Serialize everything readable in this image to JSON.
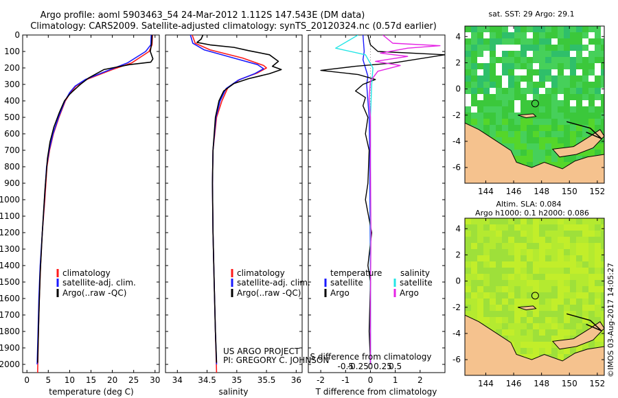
{
  "title": {
    "line1": "Argo profile: aoml 5903463_54 24-Mar-2012 1.112S 147.543E (DM data)",
    "line2": "Climatology: CARS2009. Satellite-adjusted climatology: synTS_20120324.nc (0.57d earlier)"
  },
  "colors": {
    "climatology": "#ff1a1a",
    "satellite": "#1a1aff",
    "argo": "#000000",
    "cyan": "#22e5e5",
    "magenta": "#e522e5",
    "land": "#f5c28e",
    "sst_green": "#3bd13b",
    "sla_green": "#a6e62c"
  },
  "chart_data": [
    {
      "type": "line",
      "id": "temperature",
      "xlabel": "temperature (deg C)",
      "xlim": [
        -1,
        31
      ],
      "xticks": [
        0,
        5,
        10,
        15,
        20,
        25,
        30
      ],
      "xtick_labels": [
        "0",
        "5",
        "10",
        "15",
        "20",
        "25",
        "30"
      ],
      "ylim": [
        0,
        2050
      ],
      "yticks": [
        0,
        100,
        200,
        300,
        400,
        500,
        600,
        700,
        800,
        900,
        1000,
        1100,
        1200,
        1300,
        1400,
        1500,
        1600,
        1700,
        1800,
        1900,
        2000
      ],
      "ytick_labels": [
        "0",
        "100",
        "200",
        "300",
        "400",
        "500",
        "600",
        "700",
        "800",
        "900",
        "1000",
        "1100",
        "1200",
        "1300",
        "1400",
        "1500",
        "1600",
        "1700",
        "1800",
        "1900",
        "2000"
      ],
      "legend": [
        "climatology",
        "satellite-adj. clim.",
        "Argo(..raw -QC)"
      ],
      "series": [
        {
          "name": "climatology",
          "color": "#ff1a1a",
          "points": [
            [
              29.4,
              0
            ],
            [
              29.3,
              60
            ],
            [
              28.6,
              100
            ],
            [
              24.5,
              170
            ],
            [
              20,
              210
            ],
            [
              14,
              270
            ],
            [
              11.5,
              310
            ],
            [
              10.2,
              350
            ],
            [
              9,
              400
            ],
            [
              7.5,
              500
            ],
            [
              6.2,
              600
            ],
            [
              5.3,
              700
            ],
            [
              4.7,
              800
            ],
            [
              4.2,
              1000
            ],
            [
              3.6,
              1200
            ],
            [
              3.2,
              1400
            ],
            [
              2.9,
              1600
            ],
            [
              2.7,
              1800
            ],
            [
              2.5,
              2050
            ]
          ]
        },
        {
          "name": "satellite-adj. clim.",
          "color": "#1a1aff",
          "points": [
            [
              29.1,
              0
            ],
            [
              29,
              60
            ],
            [
              27.8,
              100
            ],
            [
              23.5,
              170
            ],
            [
              19,
              215
            ],
            [
              13.7,
              270
            ],
            [
              11.3,
              310
            ],
            [
              10,
              350
            ],
            [
              8.9,
              400
            ],
            [
              7.4,
              500
            ],
            [
              6.1,
              600
            ],
            [
              5.2,
              700
            ],
            [
              4.6,
              800
            ],
            [
              4.1,
              1000
            ],
            [
              3.6,
              1200
            ],
            [
              3.1,
              1400
            ],
            [
              2.8,
              1600
            ],
            [
              2.6,
              1800
            ],
            [
              2.4,
              2000
            ]
          ]
        },
        {
          "name": "Argo(..raw -QC)",
          "color": "#000000",
          "points": [
            [
              29.3,
              0
            ],
            [
              29.2,
              50
            ],
            [
              28.9,
              100
            ],
            [
              29.5,
              145
            ],
            [
              29,
              165
            ],
            [
              24,
              180
            ],
            [
              18,
              210
            ],
            [
              14.5,
              260
            ],
            [
              12.5,
              300
            ],
            [
              10.8,
              340
            ],
            [
              10,
              360
            ],
            [
              8.8,
              400
            ],
            [
              7.6,
              470
            ],
            [
              6.3,
              560
            ],
            [
              5.4,
              650
            ],
            [
              4.8,
              750
            ],
            [
              4.2,
              950
            ],
            [
              3.6,
              1200
            ],
            [
              3.1,
              1450
            ],
            [
              2.8,
              1700
            ],
            [
              2.5,
              1990
            ]
          ]
        }
      ]
    },
    {
      "type": "line",
      "id": "salinity",
      "xlabel": "salinity",
      "xlim": [
        33.8,
        36.1
      ],
      "xticks": [
        34,
        34.5,
        35,
        35.5,
        36
      ],
      "xtick_labels": [
        "34",
        "34.5",
        "35",
        "35.5",
        "36"
      ],
      "ylim": [
        0,
        2050
      ],
      "legend": [
        "climatology",
        "satellite-adj. clim.",
        "Argo(..raw -QC)"
      ],
      "annotation": [
        "US ARGO PROJECT",
        "PI: GREGORY C. JOHNSON"
      ],
      "series": [
        {
          "name": "climatology",
          "color": "#ff1a1a",
          "points": [
            [
              34.25,
              0
            ],
            [
              34.3,
              50
            ],
            [
              34.55,
              90
            ],
            [
              35.1,
              140
            ],
            [
              35.45,
              185
            ],
            [
              35.5,
              200
            ],
            [
              35.35,
              230
            ],
            [
              35.05,
              270
            ],
            [
              34.85,
              320
            ],
            [
              34.75,
              400
            ],
            [
              34.66,
              500
            ],
            [
              34.6,
              700
            ],
            [
              34.59,
              900
            ],
            [
              34.6,
              1200
            ],
            [
              34.62,
              1500
            ],
            [
              34.64,
              1800
            ],
            [
              34.66,
              2050
            ]
          ]
        },
        {
          "name": "satellite-adj. clim.",
          "color": "#1a1aff",
          "points": [
            [
              34.22,
              0
            ],
            [
              34.26,
              50
            ],
            [
              34.45,
              90
            ],
            [
              34.95,
              140
            ],
            [
              35.35,
              180
            ],
            [
              35.45,
              205
            ],
            [
              35.3,
              235
            ],
            [
              35.02,
              275
            ],
            [
              34.82,
              325
            ],
            [
              34.72,
              400
            ],
            [
              34.65,
              500
            ],
            [
              34.6,
              700
            ],
            [
              34.59,
              900
            ],
            [
              34.6,
              1200
            ],
            [
              34.62,
              1500
            ],
            [
              34.64,
              1800
            ],
            [
              34.66,
              2000
            ]
          ]
        },
        {
          "name": "Argo(..raw -QC)",
          "color": "#000000",
          "points": [
            [
              34.43,
              0
            ],
            [
              34.4,
              25
            ],
            [
              34.33,
              45
            ],
            [
              34.55,
              60
            ],
            [
              34.95,
              75
            ],
            [
              35.2,
              95
            ],
            [
              35.55,
              120
            ],
            [
              35.7,
              160
            ],
            [
              35.6,
              190
            ],
            [
              35.75,
              210
            ],
            [
              35.55,
              235
            ],
            [
              35.2,
              265
            ],
            [
              34.95,
              295
            ],
            [
              34.78,
              340
            ],
            [
              34.7,
              400
            ],
            [
              34.64,
              500
            ],
            [
              34.6,
              700
            ],
            [
              34.59,
              900
            ],
            [
              34.6,
              1200
            ],
            [
              34.62,
              1500
            ],
            [
              34.64,
              1800
            ],
            [
              34.66,
              1990
            ]
          ]
        }
      ]
    },
    {
      "type": "line",
      "id": "difference",
      "xlabel": "T difference from climatology",
      "xlim": [
        -2.5,
        3
      ],
      "xticks": [
        -2,
        -1,
        0,
        1,
        2
      ],
      "xtick_labels": [
        "-2",
        "-1",
        "0",
        "1",
        "2"
      ],
      "top_axis_label": "S difference from climatology",
      "top_ticks": [
        -0.5,
        -0.25,
        0,
        0.25,
        0.5
      ],
      "top_tick_labels": [
        "-0.5",
        "-0.25",
        "0",
        "0.25",
        "0.5"
      ],
      "ylim": [
        0,
        2050
      ],
      "legend": {
        "temperature_header": "temperature",
        "salinity_header": "salinity",
        "satellite": "satellite",
        "argo": "Argo"
      },
      "series": [
        {
          "name": "temperature satellite",
          "color": "#1a1aff",
          "points": [
            [
              -0.3,
              0
            ],
            [
              -0.25,
              100
            ],
            [
              -0.3,
              150
            ],
            [
              -0.2,
              200
            ],
            [
              -0.1,
              250
            ],
            [
              -0.15,
              300
            ],
            [
              -0.1,
              400
            ],
            [
              -0.05,
              500
            ],
            [
              -0.03,
              700
            ],
            [
              -0.02,
              1000
            ],
            [
              0,
              1500
            ],
            [
              0,
              2000
            ]
          ]
        },
        {
          "name": "temperature Argo",
          "color": "#000000",
          "points": [
            [
              -0.1,
              0
            ],
            [
              0,
              60
            ],
            [
              0.3,
              100
            ],
            [
              3,
              120
            ],
            [
              0.9,
              170
            ],
            [
              -0.6,
              190
            ],
            [
              -2,
              215
            ],
            [
              -0.5,
              240
            ],
            [
              0.2,
              270
            ],
            [
              -0.3,
              300
            ],
            [
              -0.6,
              340
            ],
            [
              -0.2,
              380
            ],
            [
              -0.3,
              430
            ],
            [
              -0.1,
              500
            ],
            [
              -0.2,
              600
            ],
            [
              -0.05,
              700
            ],
            [
              -0.1,
              900
            ],
            [
              -0.2,
              1000
            ],
            [
              0.05,
              1200
            ],
            [
              -0.1,
              1400
            ],
            [
              0,
              1500
            ],
            [
              -0.05,
              1800
            ],
            [
              0,
              1990
            ]
          ]
        },
        {
          "name": "salinity satellite",
          "color": "#22e5e5",
          "points": [
            [
              -0.5,
              0
            ],
            [
              -1.4,
              80
            ],
            [
              -0.2,
              120
            ],
            [
              0.1,
              200
            ],
            [
              0.05,
              300
            ],
            [
              0,
              500
            ],
            [
              0,
              1000
            ],
            [
              0,
              1500
            ],
            [
              0,
              2000
            ]
          ]
        },
        {
          "name": "salinity Argo",
          "color": "#e522e5",
          "points": [
            [
              0.5,
              0
            ],
            [
              0.9,
              50
            ],
            [
              2.8,
              65
            ],
            [
              1.5,
              80
            ],
            [
              0.4,
              110
            ],
            [
              1.5,
              130
            ],
            [
              0.2,
              160
            ],
            [
              1.2,
              185
            ],
            [
              0.3,
              220
            ],
            [
              0,
              280
            ],
            [
              -0.05,
              380
            ],
            [
              0,
              500
            ],
            [
              0,
              800
            ],
            [
              0.02,
              1200
            ],
            [
              0,
              1600
            ],
            [
              0,
              2000
            ]
          ]
        }
      ]
    },
    {
      "type": "heatmap",
      "id": "sst_map",
      "title": "sat. SST: 29 Argo: 29.1",
      "xlim": [
        142.5,
        152.5
      ],
      "ylim": [
        -7.2,
        4.8
      ],
      "xticks": [
        144,
        146,
        148,
        150,
        152
      ],
      "xtick_labels": [
        "144",
        "146",
        "148",
        "150",
        "152"
      ],
      "yticks": [
        4,
        2,
        0,
        -2,
        -4,
        -6
      ],
      "ytick_labels": [
        "4",
        "2",
        "0",
        "-2",
        "-4",
        "-6"
      ],
      "profile_lon": 147.543,
      "profile_lat": -1.112
    },
    {
      "type": "heatmap",
      "id": "sla_map",
      "title_line1": "Altim. SLA: 0.084",
      "title_line2": "Argo h1000: 0.1 h2000: 0.086",
      "xlim": [
        142.5,
        152.5
      ],
      "ylim": [
        -7.2,
        4.8
      ],
      "xticks": [
        144,
        146,
        148,
        150,
        152
      ],
      "xtick_labels": [
        "144",
        "146",
        "148",
        "150",
        "152"
      ],
      "yticks": [
        4,
        2,
        0,
        -2,
        -4,
        -6
      ],
      "ytick_labels": [
        "4",
        "2",
        "0",
        "-2",
        "-4",
        "-6"
      ],
      "profile_lon": 147.543,
      "profile_lat": -1.112
    }
  ],
  "credit": "©IMOS 03-Aug-2017 14:05:27"
}
